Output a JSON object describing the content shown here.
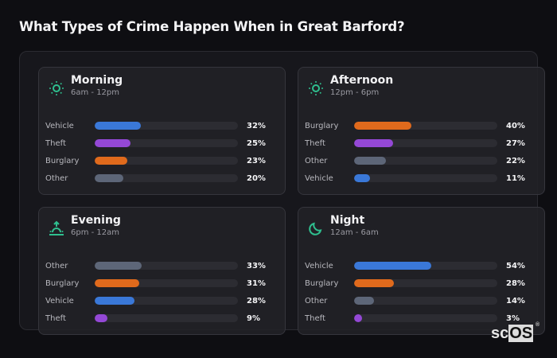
{
  "title": "What Types of Crime Happen When in Great Barford?",
  "colors": {
    "Vehicle": "#3a78d8",
    "Theft": "#9448d6",
    "Burglary": "#e06a1c",
    "Other": "#5d6678",
    "accent": "#2fbf8f"
  },
  "cards": [
    {
      "name": "Morning",
      "range": "6am - 12pm",
      "icon": "sun-icon",
      "rows": [
        {
          "label": "Vehicle",
          "pct": "32%",
          "value": 32
        },
        {
          "label": "Theft",
          "pct": "25%",
          "value": 25
        },
        {
          "label": "Burglary",
          "pct": "23%",
          "value": 23
        },
        {
          "label": "Other",
          "pct": "20%",
          "value": 20
        }
      ]
    },
    {
      "name": "Afternoon",
      "range": "12pm - 6pm",
      "icon": "sun-icon",
      "rows": [
        {
          "label": "Burglary",
          "pct": "40%",
          "value": 40
        },
        {
          "label": "Theft",
          "pct": "27%",
          "value": 27
        },
        {
          "label": "Other",
          "pct": "22%",
          "value": 22
        },
        {
          "label": "Vehicle",
          "pct": "11%",
          "value": 11
        }
      ]
    },
    {
      "name": "Evening",
      "range": "6pm - 12am",
      "icon": "sunset-icon",
      "rows": [
        {
          "label": "Other",
          "pct": "33%",
          "value": 33
        },
        {
          "label": "Burglary",
          "pct": "31%",
          "value": 31
        },
        {
          "label": "Vehicle",
          "pct": "28%",
          "value": 28
        },
        {
          "label": "Theft",
          "pct": "9%",
          "value": 9
        }
      ]
    },
    {
      "name": "Night",
      "range": "12am - 6am",
      "icon": "moon-icon",
      "rows": [
        {
          "label": "Vehicle",
          "pct": "54%",
          "value": 54
        },
        {
          "label": "Burglary",
          "pct": "28%",
          "value": 28
        },
        {
          "label": "Other",
          "pct": "14%",
          "value": 14
        },
        {
          "label": "Theft",
          "pct": "3%",
          "value": 3
        }
      ]
    }
  ],
  "logo": {
    "sc": "sc",
    "os": "OS",
    "reg": "®"
  },
  "chart_data": [
    {
      "type": "bar",
      "title": "Morning",
      "subtitle": "6am - 12pm",
      "categories": [
        "Vehicle",
        "Theft",
        "Burglary",
        "Other"
      ],
      "values": [
        32,
        25,
        23,
        20
      ],
      "unit": "%",
      "orientation": "horizontal"
    },
    {
      "type": "bar",
      "title": "Afternoon",
      "subtitle": "12pm - 6pm",
      "categories": [
        "Burglary",
        "Theft",
        "Other",
        "Vehicle"
      ],
      "values": [
        40,
        27,
        22,
        11
      ],
      "unit": "%",
      "orientation": "horizontal"
    },
    {
      "type": "bar",
      "title": "Evening",
      "subtitle": "6pm - 12am",
      "categories": [
        "Other",
        "Burglary",
        "Vehicle",
        "Theft"
      ],
      "values": [
        33,
        31,
        28,
        9
      ],
      "unit": "%",
      "orientation": "horizontal"
    },
    {
      "type": "bar",
      "title": "Night",
      "subtitle": "12am - 6am",
      "categories": [
        "Vehicle",
        "Burglary",
        "Other",
        "Theft"
      ],
      "values": [
        54,
        28,
        14,
        3
      ],
      "unit": "%",
      "orientation": "horizontal"
    }
  ]
}
